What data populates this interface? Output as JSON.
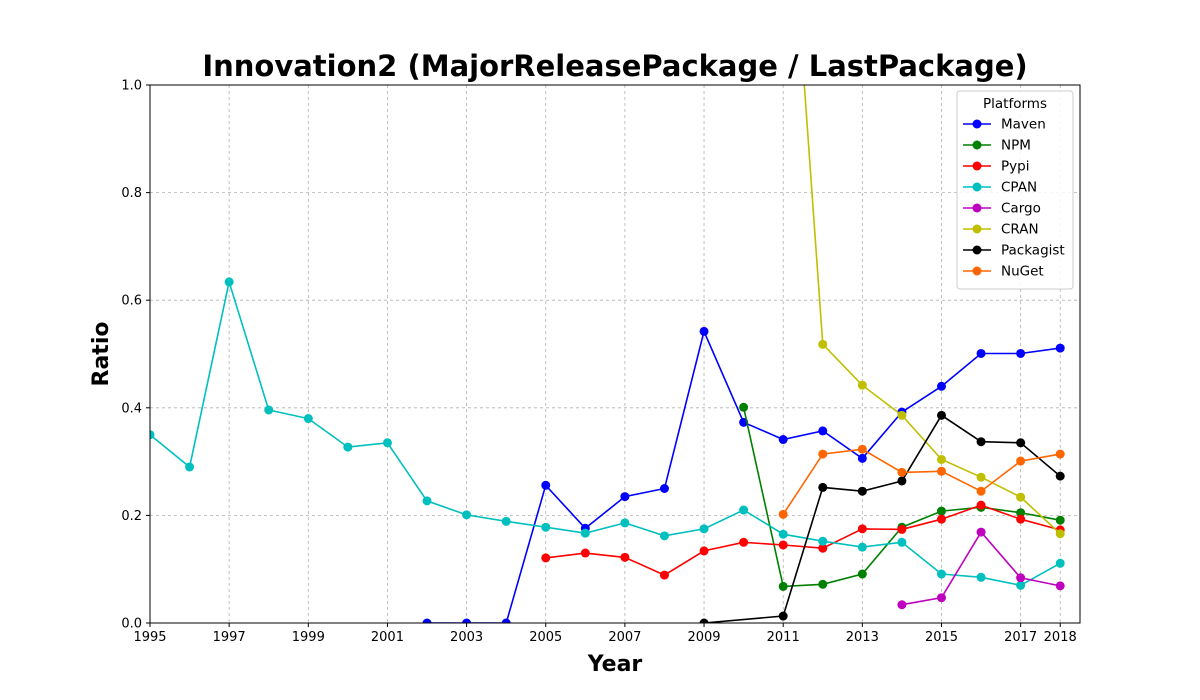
{
  "chart_data": {
    "type": "line",
    "title": "Innovation2 (MajorReleasePackage / LastPackage)",
    "xlabel": "Year",
    "ylabel": "Ratio",
    "xlim": [
      1995,
      2018.5
    ],
    "ylim": [
      0,
      1.0
    ],
    "xticks": [
      1995,
      1997,
      1999,
      2001,
      2003,
      2005,
      2007,
      2009,
      2011,
      2013,
      2015,
      2017,
      2018
    ],
    "yticks": [
      0.0,
      0.2,
      0.4,
      0.6,
      0.8,
      1.0
    ],
    "grid": true,
    "legend": {
      "title": "Platforms",
      "position": "top-right"
    },
    "series": [
      {
        "name": "Maven",
        "color": "#0000ff",
        "points": [
          [
            2002,
            0.0
          ],
          [
            2003,
            0.0
          ],
          [
            2004,
            0.0
          ],
          [
            2005,
            0.256
          ],
          [
            2006,
            0.176
          ],
          [
            2007,
            0.235
          ],
          [
            2008,
            0.25
          ],
          [
            2009,
            0.542
          ],
          [
            2010,
            0.373
          ],
          [
            2011,
            0.341
          ],
          [
            2012,
            0.357
          ],
          [
            2013,
            0.306
          ],
          [
            2014,
            0.392
          ],
          [
            2015,
            0.44
          ],
          [
            2016,
            0.501
          ],
          [
            2017,
            0.501
          ],
          [
            2018,
            0.511
          ]
        ]
      },
      {
        "name": "NPM",
        "color": "#008000",
        "points": [
          [
            2010,
            0.401
          ],
          [
            2011,
            0.068
          ],
          [
            2012,
            0.072
          ],
          [
            2013,
            0.091
          ],
          [
            2014,
            0.178
          ],
          [
            2015,
            0.208
          ],
          [
            2016,
            0.215
          ],
          [
            2017,
            0.205
          ],
          [
            2018,
            0.191
          ]
        ]
      },
      {
        "name": "Pypi",
        "color": "#ff0000",
        "points": [
          [
            2005,
            0.121
          ],
          [
            2006,
            0.13
          ],
          [
            2007,
            0.122
          ],
          [
            2008,
            0.089
          ],
          [
            2009,
            0.134
          ],
          [
            2010,
            0.15
          ],
          [
            2011,
            0.145
          ],
          [
            2012,
            0.139
          ],
          [
            2013,
            0.175
          ],
          [
            2014,
            0.174
          ],
          [
            2015,
            0.193
          ],
          [
            2016,
            0.219
          ],
          [
            2017,
            0.193
          ],
          [
            2018,
            0.173
          ]
        ]
      },
      {
        "name": "CPAN",
        "color": "#00bfbf",
        "points": [
          [
            1995,
            0.35
          ],
          [
            1996,
            0.29
          ],
          [
            1997,
            0.634
          ],
          [
            1998,
            0.396
          ],
          [
            1999,
            0.38
          ],
          [
            2000,
            0.327
          ],
          [
            2001,
            0.335
          ],
          [
            2002,
            0.227
          ],
          [
            2003,
            0.201
          ],
          [
            2004,
            0.189
          ],
          [
            2005,
            0.178
          ],
          [
            2006,
            0.167
          ],
          [
            2007,
            0.186
          ],
          [
            2008,
            0.162
          ],
          [
            2009,
            0.175
          ],
          [
            2010,
            0.21
          ],
          [
            2011,
            0.165
          ],
          [
            2012,
            0.152
          ],
          [
            2013,
            0.141
          ],
          [
            2014,
            0.15
          ],
          [
            2015,
            0.091
          ],
          [
            2016,
            0.085
          ],
          [
            2017,
            0.07
          ],
          [
            2018,
            0.111
          ]
        ]
      },
      {
        "name": "Cargo",
        "color": "#bf00bf",
        "points": [
          [
            2014,
            0.034
          ],
          [
            2015,
            0.047
          ],
          [
            2016,
            0.169
          ],
          [
            2017,
            0.084
          ],
          [
            2018,
            0.069
          ]
        ]
      },
      {
        "name": "CRAN",
        "color": "#bfbf00",
        "points": [
          [
            2011,
            1.55
          ],
          [
            2012,
            0.518
          ],
          [
            2013,
            0.442
          ],
          [
            2014,
            0.386
          ],
          [
            2015,
            0.304
          ],
          [
            2016,
            0.271
          ],
          [
            2017,
            0.234
          ],
          [
            2018,
            0.166
          ]
        ]
      },
      {
        "name": "Packagist",
        "color": "#000000",
        "points": [
          [
            2009,
            0.0
          ],
          [
            2011,
            0.013
          ],
          [
            2012,
            0.252
          ],
          [
            2013,
            0.245
          ],
          [
            2014,
            0.264
          ],
          [
            2015,
            0.386
          ],
          [
            2016,
            0.337
          ],
          [
            2017,
            0.335
          ],
          [
            2018,
            0.273
          ]
        ]
      },
      {
        "name": "NuGet",
        "color": "#ff6600",
        "points": [
          [
            2011,
            0.202
          ],
          [
            2012,
            0.314
          ],
          [
            2013,
            0.323
          ],
          [
            2014,
            0.28
          ],
          [
            2015,
            0.282
          ],
          [
            2016,
            0.245
          ],
          [
            2017,
            0.301
          ],
          [
            2018,
            0.314
          ]
        ]
      }
    ]
  }
}
